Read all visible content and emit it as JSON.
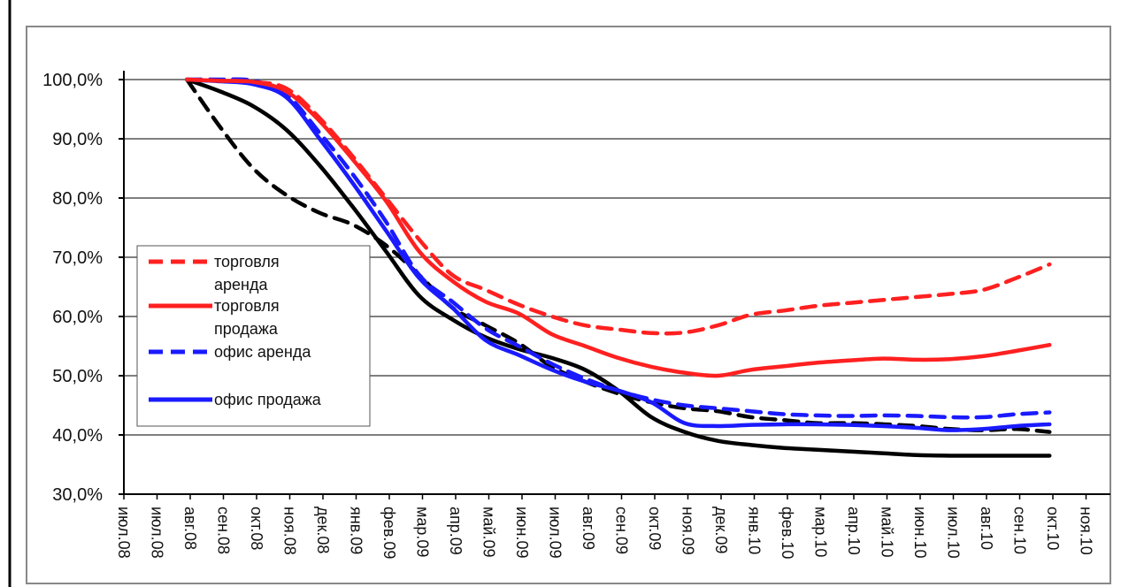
{
  "chart_data": {
    "type": "line",
    "title": "",
    "xlabel": "",
    "ylabel": "",
    "ylim": [
      30,
      100
    ],
    "y_ticks": [
      "30,0%",
      "40,0%",
      "50,0%",
      "60,0%",
      "70,0%",
      "80,0%",
      "90,0%",
      "100,0%"
    ],
    "grid": "horizontal",
    "legend_position": "left-middle",
    "categories": [
      "июл.08",
      "июл.08",
      "авг.08",
      "сен.08",
      "окт.08",
      "ноя.08",
      "дек.08",
      "янв.09",
      "фев.09",
      "мар.09",
      "апр.09",
      "май.09",
      "июн.09",
      "июл.09",
      "авг.09",
      "сен.09",
      "окт.09",
      "ноя.09",
      "дек.09",
      "янв.10",
      "фев.10",
      "мар.10",
      "апр.10",
      "май.10",
      "июн.10",
      "июл.10",
      "авг.10",
      "сен.10",
      "окт.10",
      "ноя.10"
    ],
    "series": [
      {
        "name": "торговля аренда",
        "color": "#ff2020",
        "style": "dashed",
        "points": [
          [
            1.5,
            100
          ],
          [
            2.5,
            99.8
          ],
          [
            3.5,
            99.6
          ],
          [
            4.5,
            98.5
          ],
          [
            5.5,
            93.5
          ],
          [
            6.5,
            87
          ],
          [
            7.5,
            80
          ],
          [
            8.5,
            73
          ],
          [
            9.5,
            67
          ],
          [
            10.5,
            64.5
          ],
          [
            11.5,
            62
          ],
          [
            12.5,
            60
          ],
          [
            13.5,
            58.5
          ],
          [
            14.5,
            57.8
          ],
          [
            15.5,
            57.2
          ],
          [
            16.5,
            57.3
          ],
          [
            17.5,
            58.5
          ],
          [
            18.5,
            60.3
          ],
          [
            19.5,
            61
          ],
          [
            20.5,
            61.8
          ],
          [
            21.5,
            62.3
          ],
          [
            22.5,
            62.8
          ],
          [
            23.5,
            63.3
          ],
          [
            24.5,
            63.8
          ],
          [
            25.5,
            64.5
          ],
          [
            26.5,
            66.5
          ],
          [
            27.5,
            68.8
          ]
        ]
      },
      {
        "name": "торговля продажа",
        "color": "#ff2020",
        "style": "solid",
        "points": [
          [
            1.5,
            100
          ],
          [
            2.5,
            99.8
          ],
          [
            3.5,
            99.6
          ],
          [
            4.5,
            98
          ],
          [
            5.5,
            93
          ],
          [
            6.5,
            86.5
          ],
          [
            7.5,
            79.5
          ],
          [
            8.5,
            71
          ],
          [
            9.5,
            66
          ],
          [
            10.5,
            62.5
          ],
          [
            11.5,
            60.5
          ],
          [
            12.5,
            57
          ],
          [
            13.5,
            55
          ],
          [
            14.5,
            53
          ],
          [
            15.5,
            51.5
          ],
          [
            16.5,
            50.5
          ],
          [
            17.5,
            50
          ],
          [
            18.5,
            51
          ],
          [
            19.5,
            51.6
          ],
          [
            20.5,
            52.2
          ],
          [
            21.5,
            52.6
          ],
          [
            22.5,
            52.9
          ],
          [
            23.5,
            52.7
          ],
          [
            24.5,
            52.8
          ],
          [
            25.5,
            53.3
          ],
          [
            26.5,
            54.2
          ],
          [
            27.5,
            55.2
          ]
        ]
      },
      {
        "name": "офис аренда",
        "color": "#1a1aff",
        "style": "dashed",
        "points": [
          [
            1.5,
            100
          ],
          [
            2.5,
            100
          ],
          [
            3.5,
            99.8
          ],
          [
            4.5,
            97.5
          ],
          [
            5.5,
            91
          ],
          [
            6.5,
            84
          ],
          [
            7.5,
            76
          ],
          [
            8.5,
            67
          ],
          [
            9.5,
            62.5
          ],
          [
            10.5,
            58
          ],
          [
            11.5,
            55
          ],
          [
            12.5,
            52
          ],
          [
            13.5,
            49.5
          ],
          [
            14.5,
            47.5
          ],
          [
            15.5,
            46
          ],
          [
            16.5,
            45
          ],
          [
            17.5,
            44.5
          ],
          [
            18.5,
            44
          ],
          [
            19.5,
            43.5
          ],
          [
            20.5,
            43.3
          ],
          [
            21.5,
            43.2
          ],
          [
            22.5,
            43.3
          ],
          [
            23.5,
            43.2
          ],
          [
            24.5,
            43
          ],
          [
            25.5,
            43
          ],
          [
            26.5,
            43.5
          ],
          [
            27.5,
            43.8
          ]
        ]
      },
      {
        "name": "офис продажа",
        "color": "#1a1aff",
        "style": "solid",
        "points": [
          [
            1.5,
            100
          ],
          [
            2.5,
            99.7
          ],
          [
            3.5,
            99.2
          ],
          [
            4.5,
            97
          ],
          [
            5.5,
            90
          ],
          [
            6.5,
            82.5
          ],
          [
            7.5,
            74.5
          ],
          [
            8.5,
            66.5
          ],
          [
            9.5,
            61.5
          ],
          [
            10.5,
            56
          ],
          [
            11.5,
            53.5
          ],
          [
            12.5,
            51
          ],
          [
            13.5,
            49
          ],
          [
            14.5,
            47.5
          ],
          [
            15.5,
            45.5
          ],
          [
            16.5,
            42
          ],
          [
            17.5,
            41.5
          ],
          [
            18.5,
            41.7
          ],
          [
            19.5,
            41.8
          ],
          [
            20.5,
            41.8
          ],
          [
            21.5,
            41.7
          ],
          [
            22.5,
            41.5
          ],
          [
            23.5,
            41.2
          ],
          [
            24.5,
            40.8
          ],
          [
            25.5,
            41
          ],
          [
            26.5,
            41.5
          ],
          [
            27.5,
            41.8
          ]
        ]
      },
      {
        "name": "",
        "color": "#000000",
        "style": "dashed",
        "points": [
          [
            1.5,
            100
          ],
          [
            2.5,
            92
          ],
          [
            3.5,
            85
          ],
          [
            4.5,
            80.5
          ],
          [
            5.5,
            77.5
          ],
          [
            6.5,
            75.5
          ],
          [
            7.5,
            72
          ],
          [
            8.5,
            67
          ],
          [
            9.5,
            61.5
          ],
          [
            10.5,
            58.5
          ],
          [
            11.5,
            55.5
          ],
          [
            12.5,
            51.5
          ],
          [
            13.5,
            49
          ],
          [
            14.5,
            47
          ],
          [
            15.5,
            45.5
          ],
          [
            16.5,
            44.5
          ],
          [
            17.5,
            44
          ],
          [
            18.5,
            43
          ],
          [
            19.5,
            42.5
          ],
          [
            20.5,
            42
          ],
          [
            21.5,
            42
          ],
          [
            22.5,
            41.8
          ],
          [
            23.5,
            41.5
          ],
          [
            24.5,
            41
          ],
          [
            25.5,
            40.8
          ],
          [
            26.5,
            41
          ],
          [
            27.5,
            40.5
          ]
        ]
      },
      {
        "name": "",
        "color": "#000000",
        "style": "solid",
        "points": [
          [
            1.5,
            100
          ],
          [
            2.5,
            98
          ],
          [
            3.5,
            95.5
          ],
          [
            4.5,
            91.5
          ],
          [
            5.5,
            85.5
          ],
          [
            6.5,
            78.5
          ],
          [
            7.5,
            71
          ],
          [
            8.5,
            63.5
          ],
          [
            9.5,
            59.5
          ],
          [
            10.5,
            56.5
          ],
          [
            11.5,
            54.5
          ],
          [
            12.5,
            53
          ],
          [
            13.5,
            51
          ],
          [
            14.5,
            47.5
          ],
          [
            15.5,
            43
          ],
          [
            16.5,
            40.5
          ],
          [
            17.5,
            39
          ],
          [
            18.5,
            38.3
          ],
          [
            19.5,
            37.8
          ],
          [
            20.5,
            37.5
          ],
          [
            21.5,
            37.2
          ],
          [
            22.5,
            36.9
          ],
          [
            23.5,
            36.6
          ],
          [
            24.5,
            36.5
          ],
          [
            25.5,
            36.5
          ],
          [
            26.5,
            36.5
          ],
          [
            27.5,
            36.5
          ]
        ]
      }
    ]
  },
  "legend": [
    {
      "label_lines": [
        "торговля",
        "аренда"
      ],
      "color": "#ff2020",
      "style": "dashed"
    },
    {
      "label_lines": [
        "торговля",
        "продажа"
      ],
      "color": "#ff2020",
      "style": "solid"
    },
    {
      "label_lines": [
        "офис аренда"
      ],
      "color": "#1a1aff",
      "style": "dashed"
    },
    {
      "label_lines": [
        "офис продажа"
      ],
      "color": "#1a1aff",
      "style": "solid"
    }
  ]
}
